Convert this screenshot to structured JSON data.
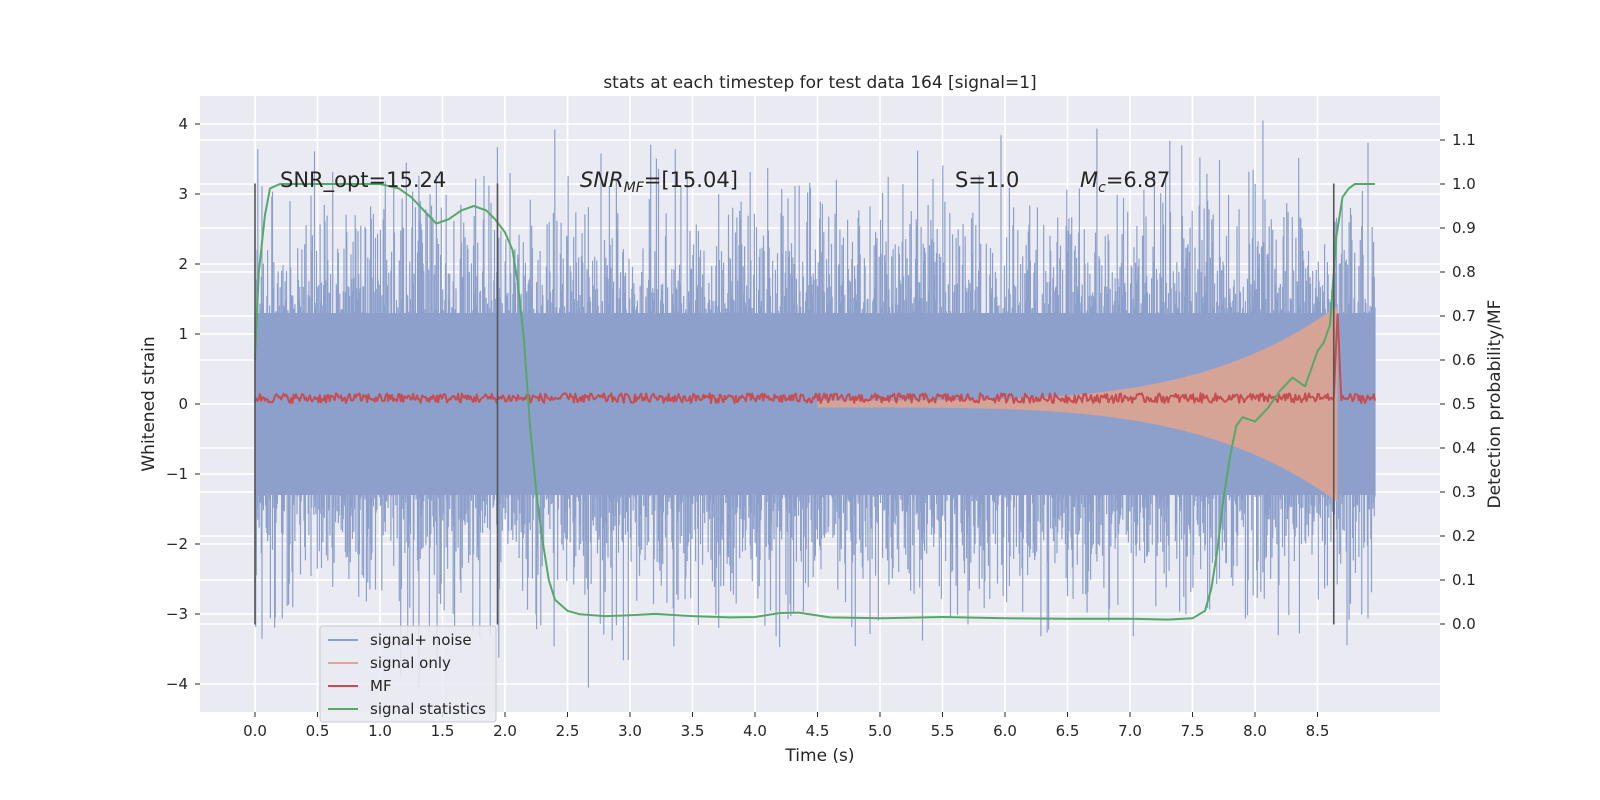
{
  "chart_data": {
    "type": "line",
    "title": "stats at each timestep for test data 164 [signal=1]",
    "xlabel": "Time (s)",
    "ylabel": "Whitened strain",
    "ylabel_right": "Detection probability/MF",
    "xlim": [
      -0.44,
      9.48
    ],
    "ylim": [
      -4.4,
      4.4
    ],
    "ylim_right": [
      -0.2,
      1.2
    ],
    "x_ticks": [
      0.0,
      0.5,
      1.0,
      1.5,
      2.0,
      2.5,
      3.0,
      3.5,
      4.0,
      4.5,
      5.0,
      5.5,
      6.0,
      6.5,
      7.0,
      7.5,
      8.0,
      8.5
    ],
    "x_tick_labels": [
      "0.0",
      "0.5",
      "1.0",
      "1.5",
      "2.0",
      "2.5",
      "3.0",
      "3.5",
      "4.0",
      "4.5",
      "5.0",
      "5.5",
      "6.0",
      "6.5",
      "7.0",
      "7.5",
      "8.0",
      "8.5"
    ],
    "y_ticks": [
      -4,
      -3,
      -2,
      -1,
      0,
      1,
      2,
      3,
      4
    ],
    "y_tick_labels": [
      "−4",
      "−3",
      "−2",
      "−1",
      "0",
      "1",
      "2",
      "3",
      "4"
    ],
    "y_right_ticks": [
      0.0,
      0.1,
      0.2,
      0.3,
      0.4,
      0.5,
      0.6,
      0.7,
      0.8,
      0.9,
      1.0,
      1.1
    ],
    "y_right_tick_labels": [
      "0.0",
      "0.1",
      "0.2",
      "0.3",
      "0.4",
      "0.5",
      "0.6",
      "0.7",
      "0.8",
      "0.9",
      "1.0",
      "1.1"
    ],
    "annotations": [
      {
        "name": "snr-opt-annotation",
        "text": "SNR_opt=15.24",
        "x": 0.2,
        "y": 3.1
      },
      {
        "name": "snr-mf-annotation",
        "text": "SNR_MF=[15.04]",
        "x": 2.6,
        "y": 3.1
      },
      {
        "name": "s-annotation",
        "text": "S=1.0",
        "x": 5.6,
        "y": 3.1
      },
      {
        "name": "mc-annotation",
        "text": "M_c=6.87",
        "x": 6.6,
        "y": 3.1
      }
    ],
    "vertical_lines": [
      0.0,
      1.94,
      8.63
    ],
    "vertical_line_range": [
      -3.15,
      3.15
    ],
    "series": [
      {
        "name": "signal+ noise",
        "color": "#8da0cb",
        "axis": "left",
        "x_range": [
          0.0,
          8.96
        ],
        "noise_std": 1.0,
        "peak_max": 4.05,
        "peak_min": -4.05
      },
      {
        "name": "signal only",
        "color": "#e8a48a",
        "axis": "left",
        "x_range": [
          4.5,
          8.66
        ],
        "chirp_start_amp": 0.05,
        "chirp_end_amp": 1.4
      },
      {
        "name": "MF",
        "color": "#c44e52",
        "axis": "right",
        "x_range": [
          0.0,
          8.96
        ],
        "baseline": 0.51
      },
      {
        "name": "signal statistics",
        "color": "#55a868",
        "axis": "right",
        "x": [
          0.0,
          0.03,
          0.08,
          0.12,
          0.2,
          0.3,
          0.5,
          0.8,
          1.0,
          1.15,
          1.25,
          1.35,
          1.45,
          1.55,
          1.65,
          1.75,
          1.85,
          1.92,
          2.0,
          2.06,
          2.1,
          2.15,
          2.2,
          2.25,
          2.3,
          2.35,
          2.4,
          2.5,
          2.6,
          2.8,
          3.0,
          3.2,
          3.5,
          3.8,
          4.0,
          4.2,
          4.35,
          4.6,
          5.0,
          5.5,
          6.0,
          6.5,
          7.0,
          7.3,
          7.5,
          7.6,
          7.65,
          7.7,
          7.75,
          7.8,
          7.85,
          7.9,
          8.0,
          8.1,
          8.2,
          8.3,
          8.4,
          8.5,
          8.55,
          8.6,
          8.65,
          8.7,
          8.75,
          8.8,
          8.9,
          8.96
        ],
        "y": [
          0.6,
          0.8,
          0.93,
          0.99,
          1.0,
          1.0,
          1.0,
          1.0,
          1.0,
          0.99,
          0.97,
          0.94,
          0.91,
          0.92,
          0.94,
          0.95,
          0.94,
          0.92,
          0.89,
          0.85,
          0.78,
          0.65,
          0.45,
          0.3,
          0.19,
          0.1,
          0.055,
          0.03,
          0.022,
          0.018,
          0.02,
          0.023,
          0.018,
          0.015,
          0.016,
          0.025,
          0.026,
          0.015,
          0.013,
          0.016,
          0.013,
          0.012,
          0.012,
          0.01,
          0.013,
          0.03,
          0.08,
          0.17,
          0.29,
          0.38,
          0.45,
          0.47,
          0.46,
          0.49,
          0.53,
          0.56,
          0.54,
          0.62,
          0.64,
          0.68,
          0.88,
          0.97,
          0.99,
          1.0,
          1.0,
          1.0
        ]
      }
    ],
    "legend": {
      "placement": "lower-left",
      "entries": [
        "signal+ noise",
        "signal only",
        "MF",
        "signal statistics"
      ]
    },
    "grid": true
  }
}
